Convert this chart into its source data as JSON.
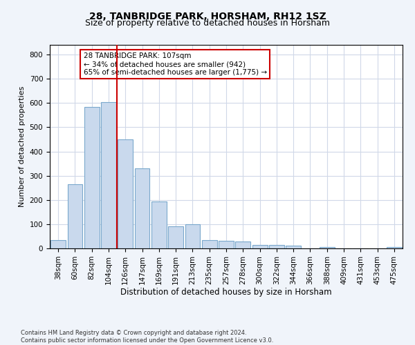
{
  "title": "28, TANBRIDGE PARK, HORSHAM, RH12 1SZ",
  "subtitle": "Size of property relative to detached houses in Horsham",
  "xlabel": "Distribution of detached houses by size in Horsham",
  "ylabel": "Number of detached properties",
  "categories": [
    "38sqm",
    "60sqm",
    "82sqm",
    "104sqm",
    "126sqm",
    "147sqm",
    "169sqm",
    "191sqm",
    "213sqm",
    "235sqm",
    "257sqm",
    "278sqm",
    "300sqm",
    "322sqm",
    "344sqm",
    "366sqm",
    "388sqm",
    "409sqm",
    "431sqm",
    "453sqm",
    "475sqm"
  ],
  "values": [
    35,
    265,
    585,
    605,
    450,
    330,
    195,
    90,
    100,
    35,
    32,
    28,
    15,
    15,
    10,
    0,
    5,
    0,
    0,
    0,
    5
  ],
  "bar_color": "#c9d9ed",
  "bar_edge_color": "#7aa8cc",
  "vline_x": 3.5,
  "vline_color": "#cc0000",
  "annotation_text": "28 TANBRIDGE PARK: 107sqm\n← 34% of detached houses are smaller (942)\n65% of semi-detached houses are larger (1,775) →",
  "annotation_box_color": "#ffffff",
  "annotation_box_edge_color": "#cc0000",
  "yticks": [
    0,
    100,
    200,
    300,
    400,
    500,
    600,
    700,
    800
  ],
  "ylim": [
    0,
    840
  ],
  "footnote": "Contains HM Land Registry data © Crown copyright and database right 2024.\nContains public sector information licensed under the Open Government Licence v3.0.",
  "bg_color": "#f0f4fa",
  "plot_bg_color": "#ffffff",
  "grid_color": "#d0d8e8",
  "title_fontsize": 10,
  "subtitle_fontsize": 9,
  "xlabel_fontsize": 8.5,
  "ylabel_fontsize": 8,
  "tick_fontsize": 7.5,
  "annotation_fontsize": 7.5,
  "footnote_fontsize": 6
}
